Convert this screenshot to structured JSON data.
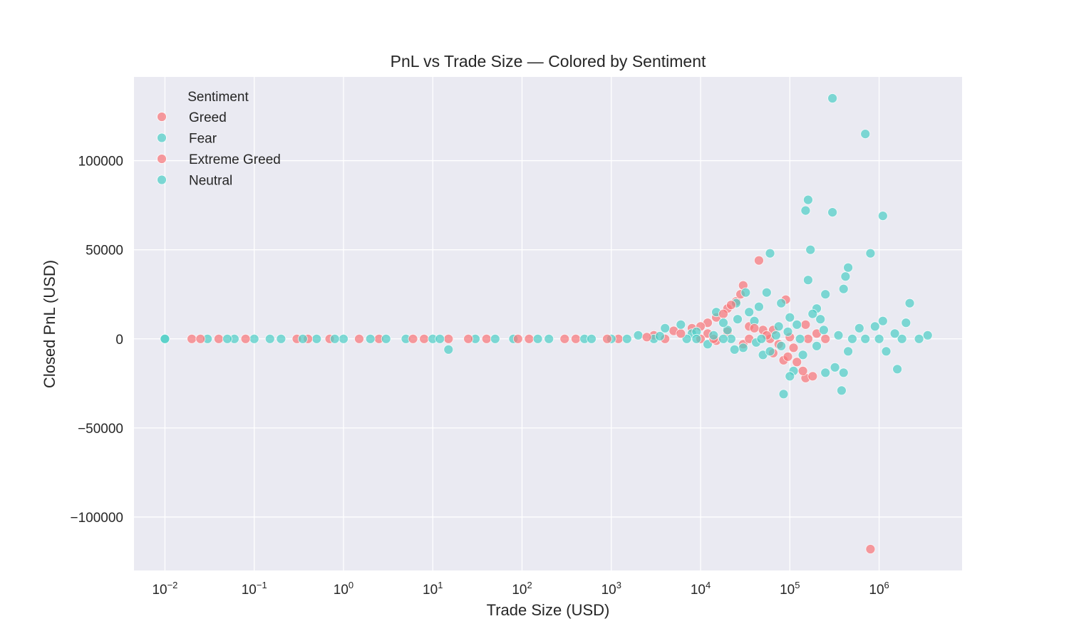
{
  "chart_data": {
    "type": "scatter",
    "title": "PnL vs Trade Size — Colored by Sentiment",
    "xlabel": "Trade Size (USD)",
    "ylabel": "Closed PnL (USD)",
    "x_scale": "log",
    "xlim": [
      0.0045,
      8500000
    ],
    "ylim": [
      -130000,
      147000
    ],
    "x_ticks": [
      {
        "value": 0.01,
        "base": "10",
        "exp": "−2"
      },
      {
        "value": 0.1,
        "base": "10",
        "exp": "−1"
      },
      {
        "value": 1,
        "base": "10",
        "exp": "0"
      },
      {
        "value": 10,
        "base": "10",
        "exp": "1"
      },
      {
        "value": 100,
        "base": "10",
        "exp": "2"
      },
      {
        "value": 1000,
        "base": "10",
        "exp": "3"
      },
      {
        "value": 10000,
        "base": "10",
        "exp": "4"
      },
      {
        "value": 100000,
        "base": "10",
        "exp": "5"
      },
      {
        "value": 1000000,
        "base": "10",
        "exp": "6"
      }
    ],
    "y_ticks": [
      {
        "value": 100000,
        "label": "100000"
      },
      {
        "value": 50000,
        "label": "50000"
      },
      {
        "value": 0,
        "label": "0"
      },
      {
        "value": -50000,
        "label": "−50000"
      },
      {
        "value": -100000,
        "label": "−100000"
      }
    ],
    "grid": true,
    "legend": {
      "title": "Sentiment",
      "position": "top-left"
    },
    "background": "#eaeaf2",
    "series": [
      {
        "name": "Greed",
        "color": "#f8777a",
        "points": [
          [
            0.02,
            0
          ],
          [
            0.04,
            0
          ],
          [
            0.3,
            0
          ],
          [
            0.7,
            0
          ],
          [
            2.5,
            0
          ],
          [
            8,
            0
          ],
          [
            15,
            0
          ],
          [
            40,
            0
          ],
          [
            120,
            0
          ],
          [
            400,
            0
          ],
          [
            1200,
            0
          ],
          [
            3000,
            2000
          ],
          [
            5000,
            4500
          ],
          [
            8000,
            6000
          ],
          [
            12000,
            9000
          ],
          [
            15000,
            12000
          ],
          [
            20000,
            17000
          ],
          [
            25000,
            21000
          ],
          [
            28000,
            25000
          ],
          [
            30000,
            30000
          ],
          [
            45000,
            44000
          ],
          [
            12000,
            3000
          ],
          [
            20000,
            4000
          ],
          [
            35000,
            7000
          ],
          [
            50000,
            5000
          ],
          [
            65000,
            5000
          ],
          [
            90000,
            22000
          ],
          [
            150000,
            8000
          ],
          [
            15000,
            -1000
          ],
          [
            30000,
            -3000
          ],
          [
            65000,
            -8000
          ],
          [
            85000,
            -12000
          ],
          [
            95000,
            -10000
          ],
          [
            120000,
            -13000
          ],
          [
            150000,
            -22000
          ],
          [
            180000,
            -21000
          ],
          [
            140000,
            -18000
          ],
          [
            800000,
            -118000
          ],
          [
            100000,
            1000
          ],
          [
            10000,
            0
          ],
          [
            4000,
            0
          ],
          [
            60000,
            0
          ],
          [
            160000,
            0
          ]
        ]
      },
      {
        "name": "Fear",
        "color": "#50cfc6",
        "points": [
          [
            0.01,
            0
          ],
          [
            0.03,
            0
          ],
          [
            0.06,
            0
          ],
          [
            0.1,
            0
          ],
          [
            0.2,
            0
          ],
          [
            0.5,
            0
          ],
          [
            1,
            0
          ],
          [
            2,
            0
          ],
          [
            5,
            0
          ],
          [
            10,
            0
          ],
          [
            15,
            -6000
          ],
          [
            30,
            0
          ],
          [
            80,
            0
          ],
          [
            200,
            0
          ],
          [
            500,
            0
          ],
          [
            1000,
            0
          ],
          [
            2000,
            2000
          ],
          [
            4000,
            6000
          ],
          [
            8000,
            3000
          ],
          [
            15000,
            15000
          ],
          [
            25000,
            20000
          ],
          [
            40000,
            10000
          ],
          [
            60000,
            48000
          ],
          [
            80000,
            20000
          ],
          [
            100000,
            12000
          ],
          [
            150000,
            72000
          ],
          [
            160000,
            78000
          ],
          [
            170000,
            50000
          ],
          [
            160000,
            33000
          ],
          [
            250000,
            25000
          ],
          [
            300000,
            135000
          ],
          [
            300000,
            71000
          ],
          [
            400000,
            28000
          ],
          [
            420000,
            35000
          ],
          [
            450000,
            40000
          ],
          [
            700000,
            115000
          ],
          [
            800000,
            48000
          ],
          [
            1100000,
            69000
          ],
          [
            1100000,
            10000
          ],
          [
            2200000,
            20000
          ],
          [
            2000000,
            9000
          ],
          [
            1200000,
            -7000
          ],
          [
            1600000,
            -17000
          ],
          [
            400000,
            -19000
          ],
          [
            380000,
            -29000
          ],
          [
            320000,
            -16000
          ],
          [
            250000,
            -19000
          ],
          [
            110000,
            -18000
          ],
          [
            100000,
            -21000
          ],
          [
            85000,
            -31000
          ],
          [
            50000,
            -9000
          ],
          [
            30000,
            -5000
          ],
          [
            3500000,
            2000
          ],
          [
            2800000,
            0
          ],
          [
            1800000,
            0
          ],
          [
            900000,
            7000
          ],
          [
            600000,
            6000
          ],
          [
            200000,
            17000
          ],
          [
            220000,
            11000
          ],
          [
            130000,
            0
          ],
          [
            70000,
            2000
          ],
          [
            45000,
            18000
          ],
          [
            32000,
            26000
          ],
          [
            20000,
            5000
          ],
          [
            12000,
            -3000
          ],
          [
            7000,
            0
          ],
          [
            3000,
            0
          ],
          [
            450000,
            -7000
          ]
        ]
      },
      {
        "name": "Extreme Greed",
        "color": "#f8777a",
        "points": [
          [
            0.025,
            0
          ],
          [
            0.08,
            0
          ],
          [
            0.4,
            0
          ],
          [
            1.5,
            0
          ],
          [
            6,
            0
          ],
          [
            25,
            0
          ],
          [
            90,
            0
          ],
          [
            300,
            0
          ],
          [
            900,
            0
          ],
          [
            2500,
            1000
          ],
          [
            6000,
            3000
          ],
          [
            10000,
            7000
          ],
          [
            18000,
            14000
          ],
          [
            22000,
            19000
          ],
          [
            40000,
            6000
          ],
          [
            55000,
            2000
          ],
          [
            75000,
            -3000
          ],
          [
            110000,
            -5000
          ],
          [
            200000,
            3000
          ],
          [
            250000,
            0
          ],
          [
            14000,
            0
          ],
          [
            35000,
            0
          ]
        ]
      },
      {
        "name": "Neutral",
        "color": "#50cfc6",
        "points": [
          [
            0.01,
            0
          ],
          [
            0.05,
            0
          ],
          [
            0.15,
            0
          ],
          [
            0.35,
            0
          ],
          [
            0.8,
            0
          ],
          [
            3,
            0
          ],
          [
            12,
            0
          ],
          [
            50,
            0
          ],
          [
            150,
            0
          ],
          [
            600,
            0
          ],
          [
            1500,
            0
          ],
          [
            3500,
            1500
          ],
          [
            6000,
            8000
          ],
          [
            9000,
            4000
          ],
          [
            14000,
            2000
          ],
          [
            18000,
            9000
          ],
          [
            26000,
            11000
          ],
          [
            35000,
            15000
          ],
          [
            55000,
            26000
          ],
          [
            75000,
            7000
          ],
          [
            95000,
            4000
          ],
          [
            120000,
            8000
          ],
          [
            180000,
            14000
          ],
          [
            240000,
            5000
          ],
          [
            350000,
            2000
          ],
          [
            500000,
            0
          ],
          [
            700000,
            0
          ],
          [
            1000000,
            0
          ],
          [
            1500000,
            3000
          ],
          [
            24000,
            -6000
          ],
          [
            42000,
            -2000
          ],
          [
            60000,
            -7000
          ],
          [
            80000,
            -4000
          ],
          [
            140000,
            -9000
          ],
          [
            200000,
            -4000
          ],
          [
            9000,
            0
          ],
          [
            22000,
            0
          ],
          [
            48000,
            0
          ],
          [
            18000,
            0
          ]
        ]
      }
    ]
  }
}
